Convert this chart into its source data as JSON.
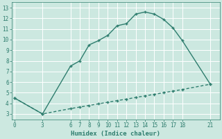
{
  "title": "",
  "xlabel": "Humidex (Indice chaleur)",
  "ylabel": "",
  "background_color": "#cce8e0",
  "grid_color": "#ffffff",
  "line_color": "#2e7d6e",
  "curve1_x": [
    0,
    3,
    6,
    7,
    8,
    9,
    10,
    11,
    12,
    13,
    14,
    15,
    16,
    17,
    18,
    21
  ],
  "curve1_y": [
    4.5,
    3.0,
    7.5,
    8.0,
    9.5,
    9.9,
    10.4,
    11.3,
    11.5,
    12.4,
    12.6,
    12.4,
    11.9,
    11.1,
    9.9,
    5.8
  ],
  "curve2_x": [
    0,
    3,
    6,
    7,
    8,
    9,
    10,
    11,
    12,
    13,
    14,
    15,
    16,
    17,
    18,
    21
  ],
  "curve2_y": [
    4.5,
    3.0,
    3.5,
    3.65,
    3.8,
    3.95,
    4.1,
    4.25,
    4.4,
    4.55,
    4.7,
    4.85,
    5.0,
    5.15,
    5.3,
    5.8
  ],
  "xticks": [
    0,
    3,
    6,
    7,
    8,
    9,
    10,
    11,
    12,
    13,
    14,
    15,
    16,
    17,
    18,
    21
  ],
  "yticks": [
    3,
    4,
    5,
    6,
    7,
    8,
    9,
    10,
    11,
    12,
    13
  ],
  "xlim": [
    -0.3,
    22.0
  ],
  "ylim": [
    2.5,
    13.5
  ],
  "markersize": 3.5,
  "linewidth": 1.0,
  "tick_fontsize": 5.5,
  "xlabel_fontsize": 6.5
}
